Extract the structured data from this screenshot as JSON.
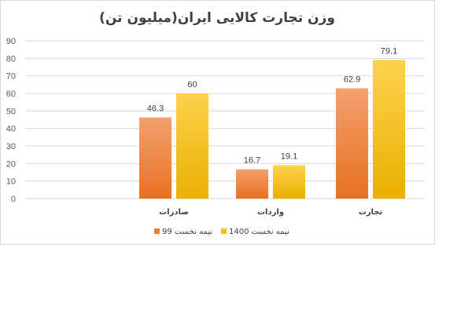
{
  "chart_data": {
    "type": "bar",
    "title": "وزن تجارت کالایی ایران(میلیون تن)",
    "categories": [
      "صادرات",
      "واردات",
      "تجارت"
    ],
    "series": [
      {
        "name": "نیمه نخست 99",
        "values": [
          46.3,
          16.7,
          62.9
        ],
        "color": "#ED7D31"
      },
      {
        "name": "نیمه نخست 1400",
        "values": [
          60,
          19.1,
          79.1
        ],
        "color": "#FFC000"
      }
    ],
    "ylim": [
      0,
      90
    ],
    "yticks": [
      0,
      10,
      20,
      30,
      40,
      50,
      60,
      70,
      80,
      90
    ],
    "grid": true,
    "legend_position": "bottom"
  }
}
